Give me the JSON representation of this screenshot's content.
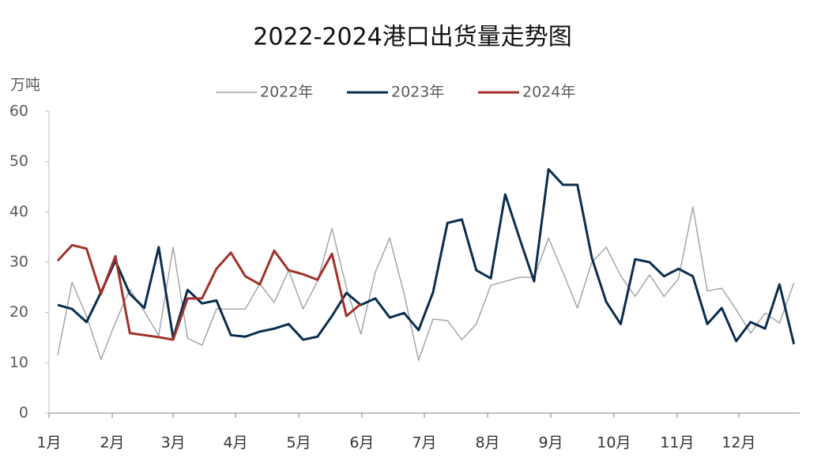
{
  "chart_data": {
    "type": "line",
    "title": "2022-2024港口出货量走势图",
    "y_label": "万吨",
    "x": [
      1,
      2,
      3,
      4,
      5,
      6,
      7,
      8,
      9,
      10,
      11,
      12,
      13,
      14,
      15,
      16,
      17,
      18,
      19,
      20,
      21,
      22,
      23,
      24,
      25,
      26,
      27,
      28,
      29,
      30,
      31,
      32,
      33,
      34,
      35,
      36,
      37,
      38,
      39,
      40,
      41,
      42,
      43,
      44,
      45,
      46,
      47,
      48,
      49,
      50,
      51,
      52
    ],
    "xlim": [
      0.4,
      52.4
    ],
    "xticks": [
      {
        "value": 0.4,
        "label": "1月"
      },
      {
        "value": 4.78,
        "label": "2月"
      },
      {
        "value": 9.0,
        "label": "3月"
      },
      {
        "value": 13.32,
        "label": "4月"
      },
      {
        "value": 17.7,
        "label": "5月"
      },
      {
        "value": 22.07,
        "label": "6月"
      },
      {
        "value": 26.4,
        "label": "7月"
      },
      {
        "value": 30.78,
        "label": "8月"
      },
      {
        "value": 35.16,
        "label": "9月"
      },
      {
        "value": 39.53,
        "label": "10月"
      },
      {
        "value": 43.91,
        "label": "11月"
      },
      {
        "value": 48.18,
        "label": "12月"
      }
    ],
    "ylim": [
      0,
      60
    ],
    "yticks": [
      0,
      10,
      20,
      30,
      40,
      50,
      60
    ],
    "grid": false,
    "legend": "top",
    "series": [
      {
        "name": "2022年",
        "color": "#a6a6a6",
        "width": 1.5,
        "values": [
          11.5,
          26,
          19.3,
          10.7,
          18,
          24.6,
          20.2,
          15.4,
          33,
          14.9,
          13.5,
          20.7,
          20.7,
          20.7,
          25.7,
          22,
          28.4,
          20.7,
          26.2,
          36.7,
          25,
          15.7,
          28,
          34.8,
          23.7,
          10.5,
          18.7,
          18.4,
          14.6,
          17.7,
          25.4,
          26.2,
          27,
          27,
          34.8,
          28,
          20.9,
          30,
          33,
          27.3,
          23.2,
          27.5,
          23.2,
          26.7,
          41,
          24.3,
          24.8,
          20.6,
          15.9,
          19.9,
          17.9,
          25.9
        ]
      },
      {
        "name": "2023年",
        "color": "#0a2d4e",
        "width": 3,
        "values": [
          21.5,
          20.7,
          18.1,
          24,
          30.3,
          23.7,
          20.9,
          33,
          14.9,
          24.5,
          21.8,
          22.4,
          15.5,
          15.2,
          16.2,
          16.8,
          17.7,
          14.6,
          15.2,
          19.3,
          23.9,
          21.5,
          22.8,
          19,
          19.9,
          16.5,
          24,
          37.8,
          38.5,
          28.4,
          26.8,
          43.5,
          34.7,
          26.2,
          48.5,
          45.4,
          45.4,
          30.9,
          22.1,
          17.7,
          30.6,
          30,
          27.2,
          28.7,
          27.2,
          17.7,
          20.9,
          14.3,
          18.1,
          16.8,
          25.6,
          13.7
        ]
      },
      {
        "name": "2024年",
        "color": "#a0322a",
        "width": 3,
        "values": [
          30.3,
          33.4,
          32.7,
          23.7,
          31.2,
          15.9,
          15.5,
          15.1,
          14.6,
          22.8,
          22.8,
          28.7,
          31.9,
          27.2,
          25.6,
          32.3,
          28.4,
          27.6,
          26.5,
          31.7,
          19.3,
          21.7,
          null,
          null,
          null,
          null,
          null,
          null,
          null,
          null,
          null,
          null,
          null,
          null,
          null,
          null,
          null,
          null,
          null,
          null,
          null,
          null,
          null,
          null,
          null,
          null,
          null,
          null,
          null,
          null,
          null,
          null
        ]
      }
    ]
  }
}
